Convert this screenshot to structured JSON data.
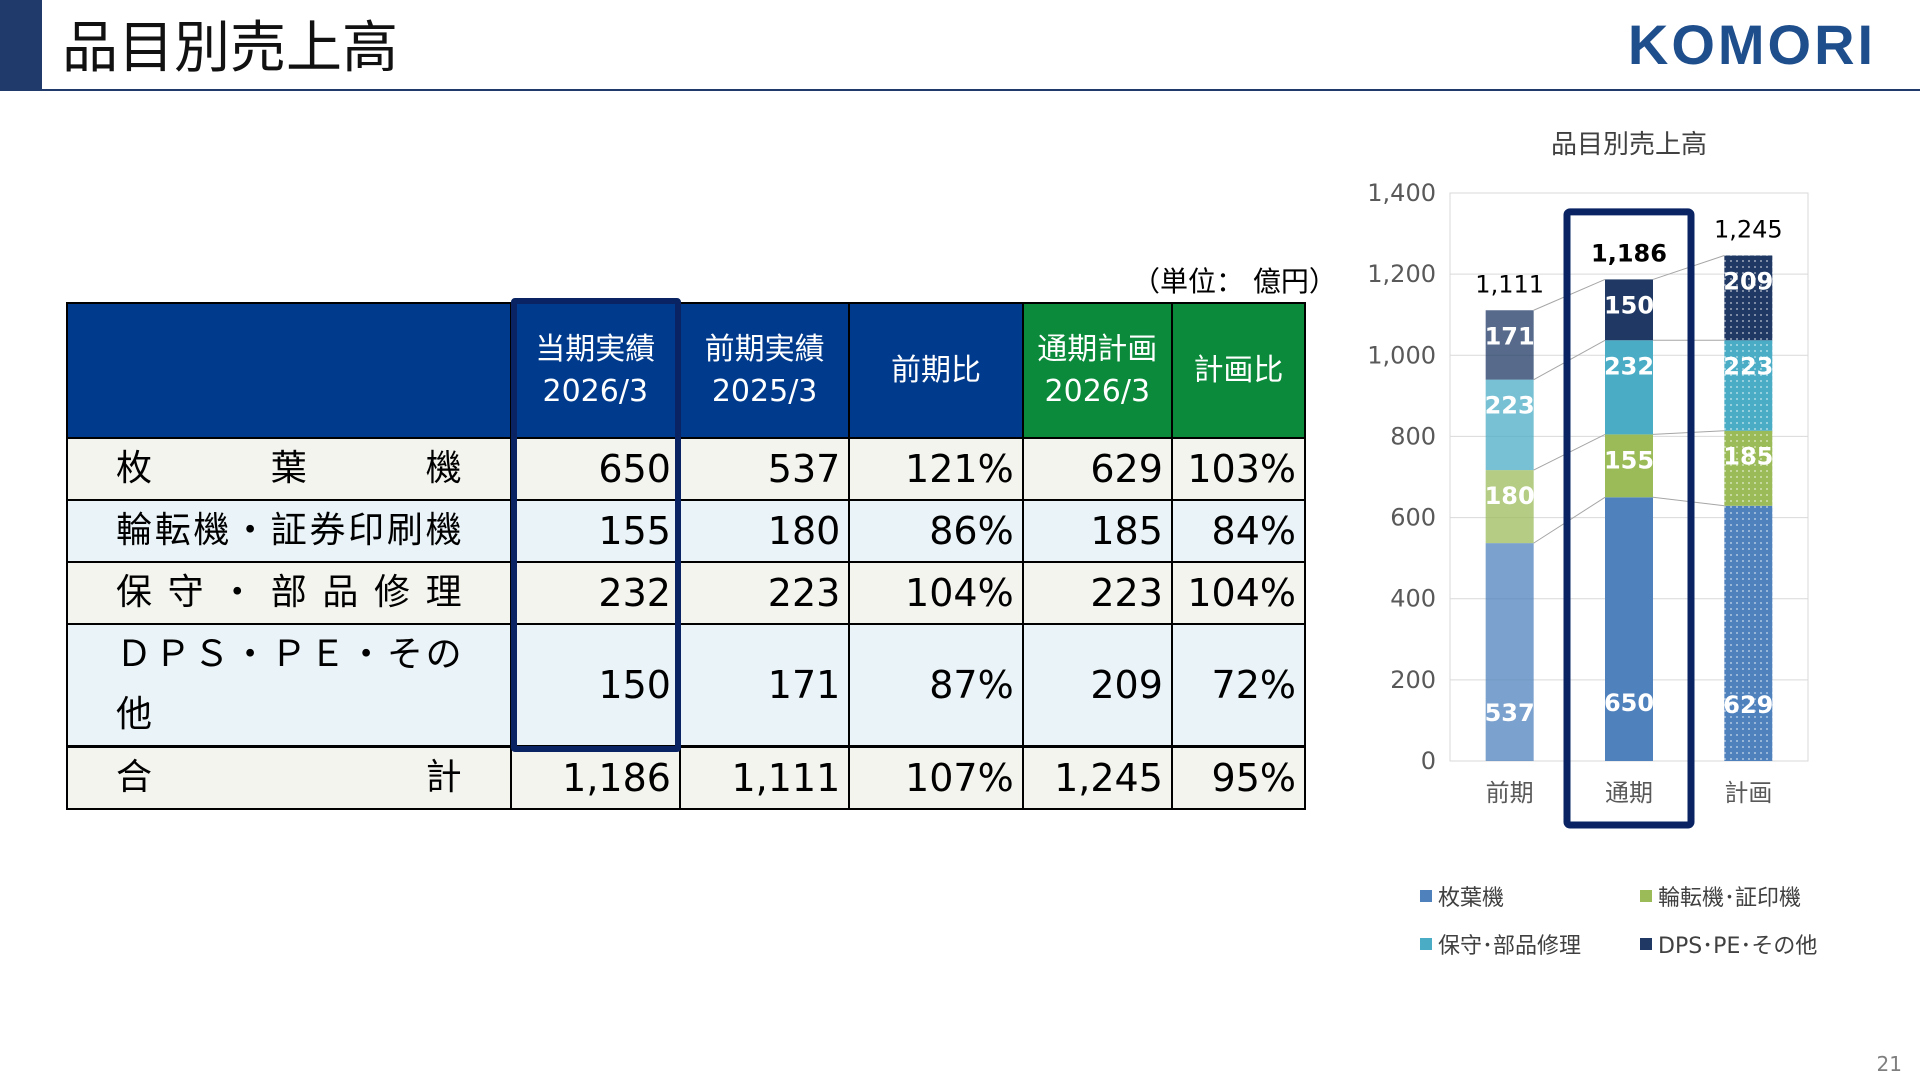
{
  "header": {
    "title": "品目別売上高",
    "logo_text": "KOMORI"
  },
  "unit_note": "（単位： 億円）",
  "table": {
    "headers": [
      {
        "line1": "",
        "line2": ""
      },
      {
        "line1": "当期実績",
        "line2": "2026/3"
      },
      {
        "line1": "前期実績",
        "line2": "2025/3"
      },
      {
        "line1": "前期比",
        "line2": ""
      },
      {
        "line1": "通期計画",
        "line2": "2026/3"
      },
      {
        "line1": "計画比",
        "line2": ""
      }
    ],
    "rows": [
      {
        "label": "枚　　葉　　機",
        "current": "650",
        "previous": "537",
        "yoy": "121%",
        "plan": "629",
        "vs_plan": "103%"
      },
      {
        "label": "輪転機・証券印刷機",
        "current": "155",
        "previous": "180",
        "yoy": "86%",
        "plan": "185",
        "vs_plan": "84%"
      },
      {
        "label": "保守・部品修理",
        "current": "232",
        "previous": "223",
        "yoy": "104%",
        "plan": "223",
        "vs_plan": "104%"
      },
      {
        "label": "ＤＰＳ・ＰＥ・その他",
        "current": "150",
        "previous": "171",
        "yoy": "87%",
        "plan": "209",
        "vs_plan": "72%"
      },
      {
        "label": "合　　計",
        "current": "1,186",
        "previous": "1,111",
        "yoy": "107%",
        "plan": "1,245",
        "vs_plan": "95%"
      }
    ],
    "colors": {
      "header_blue": "#003a8c",
      "header_green": "#0a8a3a",
      "highlight": "#0a2463"
    }
  },
  "chart_data": {
    "type": "bar",
    "stacked": true,
    "title": "品目別売上高",
    "categories": [
      "前期",
      "通期",
      "計画"
    ],
    "highlighted_category": "通期",
    "ylim": [
      0,
      1400
    ],
    "yticks": [
      0,
      200,
      400,
      600,
      800,
      1000,
      1200,
      1400
    ],
    "ytick_labels": [
      "0",
      "200",
      "400",
      "600",
      "800",
      "1,000",
      "1,200",
      "1,400"
    ],
    "totals": [
      1111,
      1186,
      1245
    ],
    "total_labels": [
      "1,111",
      "1,186",
      "1,245"
    ],
    "series": [
      {
        "name": "枚葉機",
        "values": [
          537,
          650,
          629
        ],
        "color": "#4f81bd"
      },
      {
        "name": "輪転機･証印機",
        "values": [
          180,
          155,
          185
        ],
        "color": "#9bbb59"
      },
      {
        "name": "保守･部品修理",
        "values": [
          223,
          232,
          223
        ],
        "color": "#4bacc6"
      },
      {
        "name": "DPS･PE･その他",
        "values": [
          171,
          150,
          209
        ],
        "color": "#1f3864"
      }
    ],
    "legend_position": "bottom",
    "grid": true
  },
  "page_number": "21"
}
